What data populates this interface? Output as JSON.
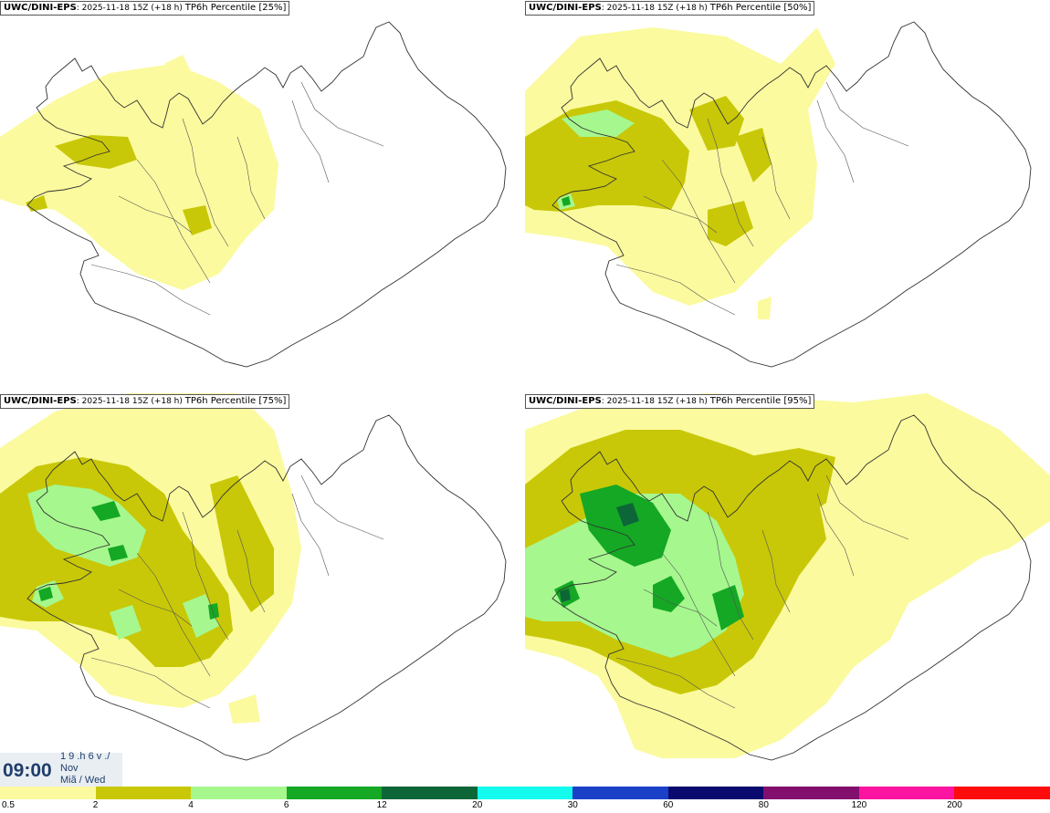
{
  "panels": [
    {
      "model": "UWC/DINI-EPS",
      "run": "2025-11-18 15Z (+18 h)",
      "field": "TP6h Percentile [25%]",
      "level": 0
    },
    {
      "model": "UWC/DINI-EPS",
      "run": "2025-11-18 15Z (+18 h)",
      "field": "TP6h Percentile [50%]",
      "level": 1
    },
    {
      "model": "UWC/DINI-EPS",
      "run": "2025-11-18 15Z (+18 h)",
      "field": "TP6h Percentile [75%]",
      "level": 2
    },
    {
      "model": "UWC/DINI-EPS",
      "run": "2025-11-18 15Z (+18 h)",
      "field": "TP6h Percentile [95%]",
      "level": 3
    }
  ],
  "time": {
    "clock": "09:00",
    "line1": "1 9 .h 6 v ./",
    "line2": "Nov",
    "line3": "Miã / Wed"
  },
  "legend": {
    "ticks": [
      "0.5",
      "2",
      "4",
      "6",
      "12",
      "20",
      "30",
      "60",
      "80",
      "120",
      "200"
    ],
    "colors": [
      "#fbfa9e",
      "#c8c808",
      "#a6f78e",
      "#14a824",
      "#0d6638",
      "#14fbee",
      "#1a40c8",
      "#0a0a6e",
      "#820e6e",
      "#fc14a0",
      "#fc0c0c"
    ]
  },
  "map_colors": {
    "light": "#fbfa9e",
    "olive": "#c8c808",
    "lightgreen": "#a6f78e",
    "green": "#14a824",
    "darkgreen": "#0d6638",
    "outline": "#333333"
  }
}
